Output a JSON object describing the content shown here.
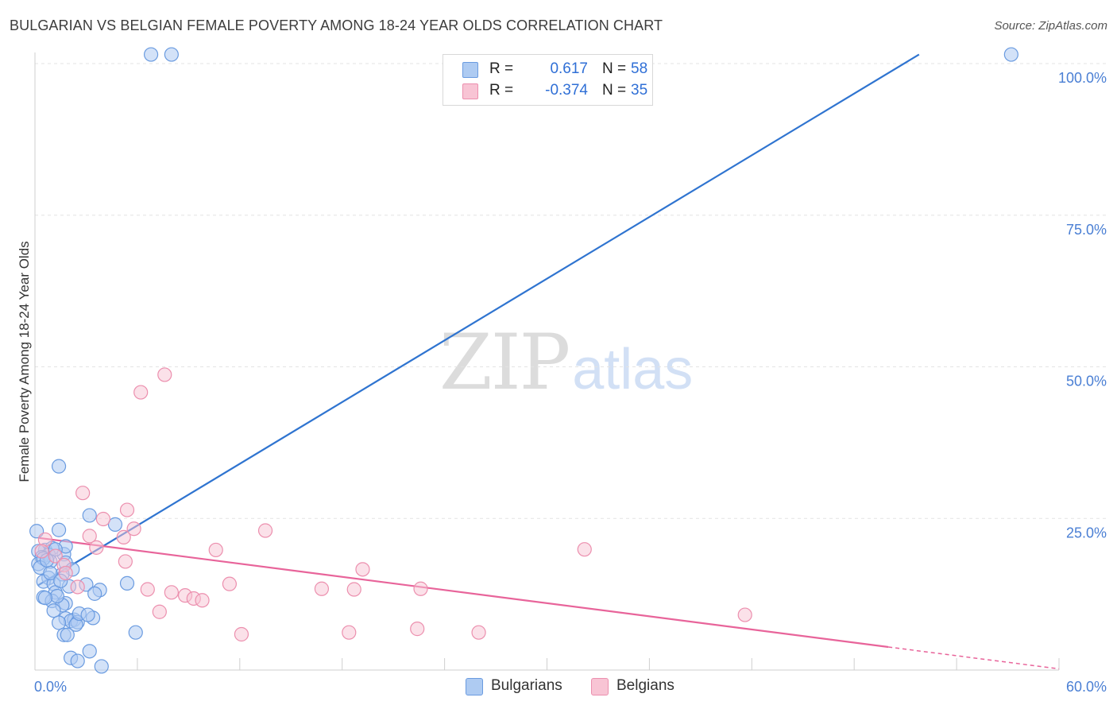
{
  "header": {
    "title": "BULGARIAN VS BELGIAN FEMALE POVERTY AMONG 18-24 YEAR OLDS CORRELATION CHART",
    "source": "Source: ZipAtlas.com"
  },
  "watermark": {
    "zip": "ZIP",
    "atlas": "atlas"
  },
  "legend": {
    "rows": [
      {
        "r_label": "R =",
        "r_value": "0.617",
        "n_label": "N =",
        "n_value": "58"
      },
      {
        "r_label": "R =",
        "r_value": "-0.374",
        "n_label": "N =",
        "n_value": "35"
      }
    ]
  },
  "bottom_legend": {
    "bulgarians": "Bulgarians",
    "belgians": "Belgians"
  },
  "colors": {
    "blue_fill": "#aecbf2",
    "blue_stroke": "#6a9be0",
    "blue_line": "#2f74d0",
    "pink_fill": "#f8c4d4",
    "pink_stroke": "#ec8fae",
    "pink_line": "#e8649a",
    "grid": "#e3e3e3",
    "tick": "#4a7fd4"
  },
  "chart_data": {
    "type": "scatter",
    "title": "BULGARIAN VS BELGIAN FEMALE POVERTY AMONG 18-24 YEAR OLDS CORRELATION CHART",
    "xlabel": "",
    "ylabel": "Female Poverty Among 18-24 Year Olds",
    "xlim": [
      0,
      60
    ],
    "ylim": [
      0,
      100
    ],
    "x_tick_labels": [
      "0.0%",
      "60.0%"
    ],
    "y_ticks": [
      25,
      50,
      75,
      100
    ],
    "y_tick_labels": [
      "25.0%",
      "50.0%",
      "75.0%",
      "100.0%"
    ],
    "legend_position": "top-center",
    "series": [
      {
        "name": "Bulgarians",
        "R": 0.617,
        "N": 58,
        "trend": {
          "x": [
            0.2,
            51.8
          ],
          "y": [
            14.0,
            101.5
          ]
        },
        "points": [
          [
            6.8,
            101.5
          ],
          [
            8.0,
            101.5
          ],
          [
            57.2,
            101.5
          ],
          [
            1.4,
            33.6
          ],
          [
            3.2,
            25.5
          ],
          [
            4.7,
            24.0
          ],
          [
            1.4,
            23.1
          ],
          [
            0.1,
            22.9
          ],
          [
            0.6,
            19.8
          ],
          [
            1.0,
            20.1
          ],
          [
            1.7,
            19.1
          ],
          [
            0.2,
            19.6
          ],
          [
            0.8,
            19.0
          ],
          [
            1.8,
            20.4
          ],
          [
            0.4,
            18.6
          ],
          [
            1.2,
            19.9
          ],
          [
            0.9,
            17.9
          ],
          [
            1.8,
            17.7
          ],
          [
            0.2,
            17.5
          ],
          [
            0.5,
            18.4
          ],
          [
            2.2,
            16.6
          ],
          [
            1.6,
            15.8
          ],
          [
            0.8,
            15.2
          ],
          [
            0.5,
            14.6
          ],
          [
            1.1,
            14.2
          ],
          [
            3.0,
            14.1
          ],
          [
            5.4,
            14.3
          ],
          [
            3.8,
            13.2
          ],
          [
            3.5,
            12.6
          ],
          [
            1.2,
            12.8
          ],
          [
            0.5,
            12.0
          ],
          [
            1.0,
            11.4
          ],
          [
            1.8,
            11.0
          ],
          [
            1.6,
            10.7
          ],
          [
            1.1,
            9.8
          ],
          [
            1.8,
            8.5
          ],
          [
            2.3,
            8.3
          ],
          [
            2.1,
            8.1
          ],
          [
            3.4,
            8.6
          ],
          [
            1.4,
            7.8
          ],
          [
            2.5,
            7.9
          ],
          [
            2.4,
            7.5
          ],
          [
            1.7,
            5.8
          ],
          [
            1.9,
            5.8
          ],
          [
            5.9,
            6.2
          ],
          [
            3.2,
            3.1
          ],
          [
            2.1,
            2.0
          ],
          [
            2.5,
            1.5
          ],
          [
            3.9,
            0.6
          ],
          [
            0.3,
            16.9
          ],
          [
            0.7,
            18.1
          ],
          [
            2.0,
            13.8
          ],
          [
            1.3,
            12.2
          ],
          [
            0.9,
            16.0
          ],
          [
            1.5,
            14.7
          ],
          [
            2.6,
            9.3
          ],
          [
            0.6,
            11.9
          ],
          [
            3.1,
            9.1
          ]
        ]
      },
      {
        "name": "Belgians",
        "R": -0.374,
        "N": 35,
        "trend": {
          "x": [
            0.2,
            50.0
          ],
          "y": [
            21.8,
            3.8
          ]
        },
        "trend_dashed": {
          "x": [
            50.0,
            60.0
          ],
          "y": [
            3.8,
            0.2
          ]
        },
        "points": [
          [
            7.6,
            48.7
          ],
          [
            6.2,
            45.8
          ],
          [
            2.8,
            29.2
          ],
          [
            5.4,
            26.4
          ],
          [
            4.0,
            24.9
          ],
          [
            5.8,
            23.3
          ],
          [
            13.5,
            23.0
          ],
          [
            3.2,
            22.1
          ],
          [
            5.2,
            21.9
          ],
          [
            0.6,
            21.5
          ],
          [
            3.6,
            20.2
          ],
          [
            10.6,
            19.8
          ],
          [
            32.2,
            19.9
          ],
          [
            1.2,
            18.8
          ],
          [
            5.3,
            17.9
          ],
          [
            1.7,
            17.3
          ],
          [
            1.8,
            16.0
          ],
          [
            19.2,
            16.6
          ],
          [
            2.5,
            13.7
          ],
          [
            11.4,
            14.2
          ],
          [
            6.6,
            13.3
          ],
          [
            8.0,
            12.8
          ],
          [
            8.8,
            12.3
          ],
          [
            9.3,
            11.8
          ],
          [
            9.8,
            11.5
          ],
          [
            16.8,
            13.4
          ],
          [
            18.7,
            13.3
          ],
          [
            22.6,
            13.4
          ],
          [
            7.3,
            9.6
          ],
          [
            41.6,
            9.1
          ],
          [
            12.1,
            5.9
          ],
          [
            18.4,
            6.2
          ],
          [
            22.4,
            6.8
          ],
          [
            26.0,
            6.2
          ],
          [
            0.4,
            19.6
          ]
        ]
      }
    ]
  }
}
